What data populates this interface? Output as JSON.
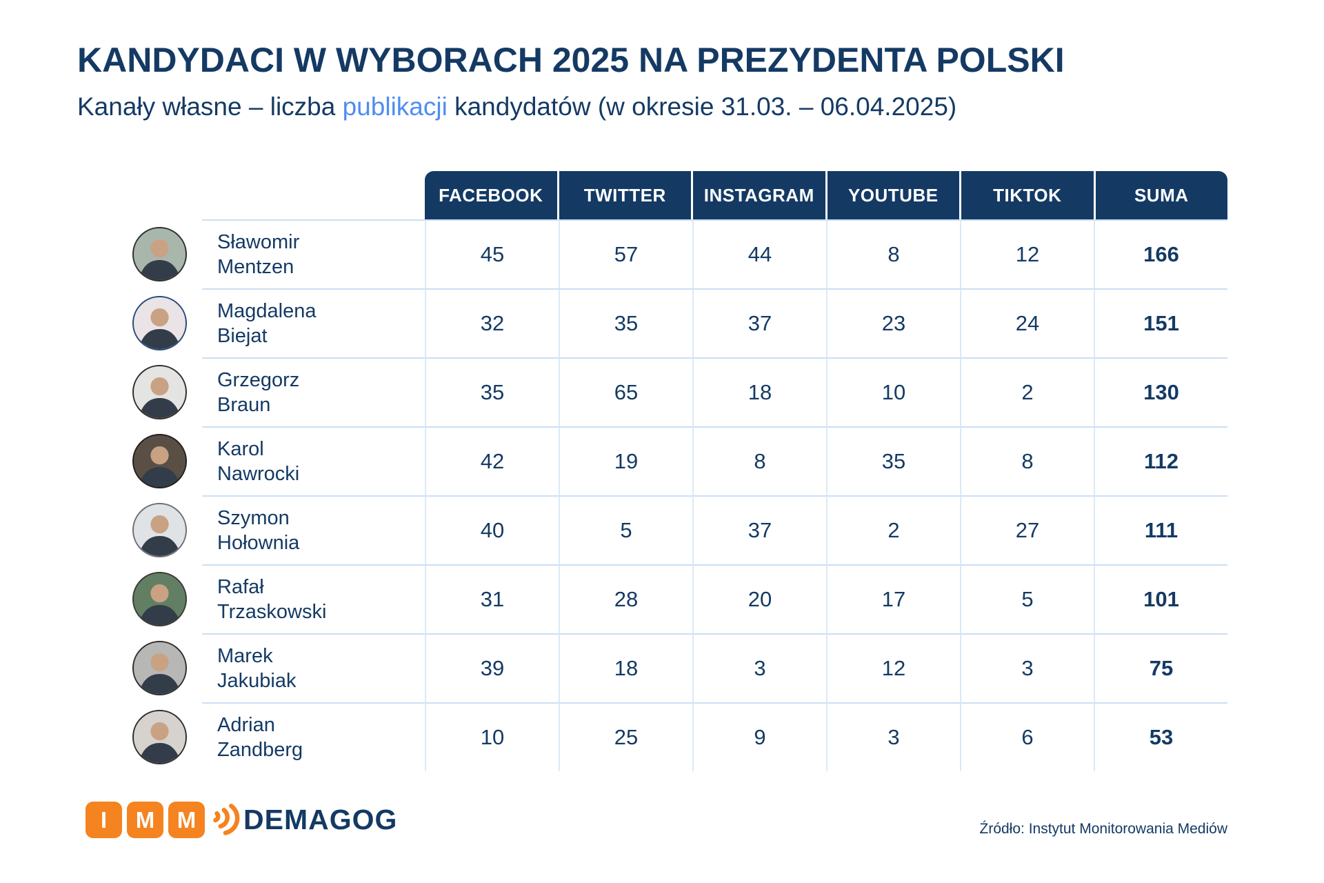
{
  "title": "KANDYDACI W WYBORACH 2025 NA PREZYDENTA POLSKI",
  "subtitle": {
    "prefix": "Kanały własne – liczba ",
    "highlight": "publikacji",
    "suffix": " kandydatów (w okresie 31.03. – 06.04.2025)"
  },
  "table": {
    "columns": [
      "FACEBOOK",
      "TWITTER",
      "INSTAGRAM",
      "YOUTUBE",
      "TIKTOK",
      "SUMA"
    ],
    "column_keys": [
      "facebook",
      "twitter",
      "instagram",
      "youtube",
      "tiktok",
      "suma"
    ],
    "candidates": [
      {
        "first": "Sławomir",
        "last": "Mentzen",
        "values": [
          45,
          57,
          44,
          8,
          12
        ],
        "suma": 166,
        "avatar": {
          "bg": "#a8b6ac",
          "ring": "#2f2f2f"
        }
      },
      {
        "first": "Magdalena",
        "last": "Biejat",
        "values": [
          32,
          35,
          37,
          23,
          24
        ],
        "suma": 151,
        "avatar": {
          "bg": "#eae4e6",
          "ring": "#274a79"
        }
      },
      {
        "first": "Grzegorz",
        "last": "Braun",
        "values": [
          35,
          65,
          18,
          10,
          2
        ],
        "suma": 130,
        "avatar": {
          "bg": "#e4e4e2",
          "ring": "#2f2f2f"
        }
      },
      {
        "first": "Karol",
        "last": "Nawrocki",
        "values": [
          42,
          19,
          8,
          35,
          8
        ],
        "suma": 112,
        "avatar": {
          "bg": "#5a4f45",
          "ring": "#22201e"
        }
      },
      {
        "first": "Szymon",
        "last": "Hołownia",
        "values": [
          40,
          5,
          37,
          2,
          27
        ],
        "suma": 111,
        "avatar": {
          "bg": "#dfe3e6",
          "ring": "#6b7077"
        }
      },
      {
        "first": "Rafał",
        "last": "Trzaskowski",
        "values": [
          31,
          28,
          20,
          17,
          5
        ],
        "suma": 101,
        "avatar": {
          "bg": "#637f63",
          "ring": "#3a3a3a"
        }
      },
      {
        "first": "Marek",
        "last": "Jakubiak",
        "values": [
          39,
          18,
          3,
          12,
          3
        ],
        "suma": 75,
        "avatar": {
          "bg": "#b7b7b5",
          "ring": "#2f2f2f"
        }
      },
      {
        "first": "Adrian",
        "last": "Zandberg",
        "values": [
          10,
          25,
          9,
          3,
          6
        ],
        "suma": 53,
        "avatar": {
          "bg": "#d6d3cf",
          "ring": "#2f2f2f"
        }
      }
    ]
  },
  "chart_data": {
    "type": "table",
    "title": "KANDYDACI W WYBORACH 2025 NA PREZYDENTA POLSKI",
    "subtitle": "Kanały własne – liczba publikacji kandydatów (w okresie 31.03. – 06.04.2025)",
    "columns": [
      "FACEBOOK",
      "TWITTER",
      "INSTAGRAM",
      "YOUTUBE",
      "TIKTOK",
      "SUMA"
    ],
    "rows": [
      {
        "candidate": "Sławomir Mentzen",
        "values": [
          45,
          57,
          44,
          8,
          12,
          166
        ]
      },
      {
        "candidate": "Magdalena Biejat",
        "values": [
          32,
          35,
          37,
          23,
          24,
          151
        ]
      },
      {
        "candidate": "Grzegorz Braun",
        "values": [
          35,
          65,
          18,
          10,
          2,
          130
        ]
      },
      {
        "candidate": "Karol Nawrocki",
        "values": [
          42,
          19,
          8,
          35,
          8,
          112
        ]
      },
      {
        "candidate": "Szymon Hołownia",
        "values": [
          40,
          5,
          37,
          2,
          27,
          111
        ]
      },
      {
        "candidate": "Rafał Trzaskowski",
        "values": [
          31,
          28,
          20,
          17,
          5,
          101
        ]
      },
      {
        "candidate": "Marek Jakubiak",
        "values": [
          39,
          18,
          3,
          12,
          3,
          75
        ]
      },
      {
        "candidate": "Adrian Zandberg",
        "values": [
          10,
          25,
          9,
          3,
          6,
          53
        ]
      }
    ],
    "source": "Źródło: Instytut Monitorowania Mediów"
  },
  "footer": {
    "imm_letters": [
      "I",
      "M",
      "M"
    ],
    "demagog": "DEMAGOG",
    "source": "Źródło: Instytut Monitorowania Mediów"
  },
  "colors": {
    "navy": "#143A64",
    "accent_blue": "#4F8DF1",
    "orange": "#F5831F",
    "row_line": "#CBDFF3",
    "column_line": "#DBE9F9",
    "header_text": "#FFFFFF"
  }
}
